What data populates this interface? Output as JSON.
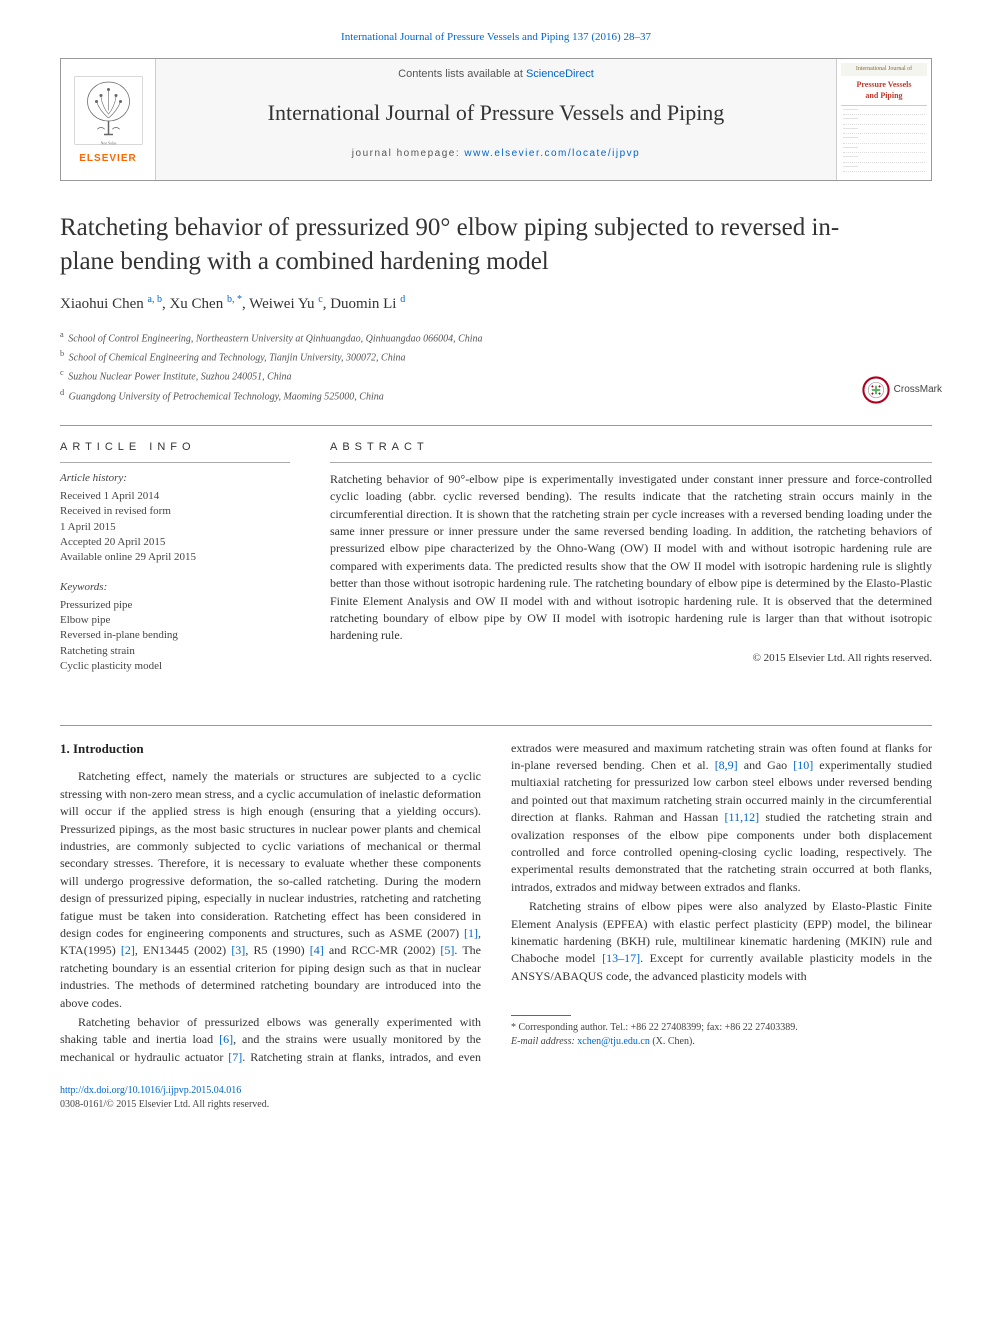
{
  "top_link": {
    "text_with_link": "International Journal of Pressure Vessels and Piping 137 (2016) 28–37"
  },
  "banner": {
    "elsevier_label": "ELSEVIER",
    "contents_prefix": "Contents lists available at ",
    "contents_link": "ScienceDirect",
    "journal_name": "International Journal of Pressure Vessels and Piping",
    "homepage_prefix": "journal homepage: ",
    "homepage_link": "www.elsevier.com/locate/ijpvp",
    "cover_small_title_top": "International Journal of",
    "cover_title_1": "Pressure Vessels",
    "cover_title_2": "and Piping"
  },
  "crossmark_label": "CrossMark",
  "article": {
    "title": "Ratcheting behavior of pressurized 90° elbow piping subjected to reversed in-plane bending with a combined hardening model",
    "authors_html": "Xiaohui Chen <sup><a class='aff-link'>a, b</a></sup>, Xu Chen <sup><a class='aff-link'>b, *</a></sup>, Weiwei Yu <sup><a class='aff-link'>c</a></sup>, Duomin Li <sup><a class='aff-link'>d</a></sup>",
    "affiliations": [
      {
        "sup": "a",
        "text": "School of Control Engineering, Northeastern University at Qinhuangdao, Qinhuangdao 066004, China"
      },
      {
        "sup": "b",
        "text": "School of Chemical Engineering and Technology, Tianjin University, 300072, China"
      },
      {
        "sup": "c",
        "text": "Suzhou Nuclear Power Institute, Suzhou 240051, China"
      },
      {
        "sup": "d",
        "text": "Guangdong University of Petrochemical Technology, Maoming 525000, China"
      }
    ]
  },
  "info": {
    "heading": "ARTICLE INFO",
    "history_label": "Article history:",
    "history": [
      "Received 1 April 2014",
      "Received in revised form",
      "1 April 2015",
      "Accepted 20 April 2015",
      "Available online 29 April 2015"
    ],
    "keywords_label": "Keywords:",
    "keywords": [
      "Pressurized pipe",
      "Elbow pipe",
      "Reversed in-plane bending",
      "Ratcheting strain",
      "Cyclic plasticity model"
    ]
  },
  "abstract": {
    "heading": "ABSTRACT",
    "text": "Ratcheting behavior of 90°-elbow pipe is experimentally investigated under constant inner pressure and force-controlled cyclic loading (abbr. cyclic reversed bending). The results indicate that the ratcheting strain occurs mainly in the circumferential direction. It is shown that the ratcheting strain per cycle increases with a reversed bending loading under the same inner pressure or inner pressure under the same reversed bending loading. In addition, the ratcheting behaviors of pressurized elbow pipe characterized by the Ohno-Wang (OW) II model with and without isotropic hardening rule are compared with experiments data. The predicted results show that the OW II model with isotropic hardening rule is slightly better than those without isotropic hardening rule. The ratcheting boundary of elbow pipe is determined by the Elasto-Plastic Finite Element Analysis and OW II model with and without isotropic hardening rule. It is observed that the determined ratcheting boundary of elbow pipe by OW II model with isotropic hardening rule is larger than that without isotropic hardening rule.",
    "copyright": "© 2015 Elsevier Ltd. All rights reserved."
  },
  "body": {
    "heading": "1. Introduction",
    "para1_pre": "Ratcheting effect, namely the materials or structures are subjected to a cyclic stressing with non-zero mean stress, and a cyclic accumulation of inelastic deformation will occur if the applied stress is high enough (ensuring that a yielding occurs). Pressurized pipings, as the most basic structures in nuclear power plants and chemical industries, are commonly subjected to cyclic variations of mechanical or thermal secondary stresses. Therefore, it is necessary to evaluate whether these components will undergo progressive deformation, the so-called ratcheting. During the modern design of pressurized piping, especially in nuclear industries, ratcheting and ratcheting fatigue must be taken into consideration. Ratcheting effect has been considered in design codes for engineering components and structures, such as ASME (2007) ",
    "ref1": "[1]",
    "para1_mid1": ", KTA(1995) ",
    "ref2": "[2]",
    "para1_mid2": ", EN13445 (2002) ",
    "ref3": "[3]",
    "para1_mid3": ", R5 (1990) ",
    "ref4": "[4]",
    "para1_mid4": " and RCC-MR (2002) ",
    "ref5": "[5]",
    "para1_post": ". The ratcheting boundary is an essential criterion for piping design such as that in nuclear industries. The methods of determined ratcheting boundary are introduced into the above codes.",
    "para2_pre": "Ratcheting behavior of pressurized elbows was generally experimented with shaking table and inertia load ",
    "ref6": "[6]",
    "para2_mid1": ", and the strains were usually monitored by the mechanical or hydraulic actuator ",
    "ref7": "[7]",
    "para2_mid2": ". Ratcheting strain at flanks, intrados, and even extrados were measured and maximum ratcheting strain was often found at flanks for in-plane reversed bending. Chen et al. ",
    "ref89": "[8,9]",
    "para2_mid3": " and Gao ",
    "ref10": "[10]",
    "para2_mid4": " experimentally studied multiaxial ratcheting for pressurized low carbon steel elbows under reversed bending and pointed out that maximum ratcheting strain occurred mainly in the circumferential direction at flanks. Rahman and Hassan ",
    "ref1112": "[11,12]",
    "para2_post": " studied the ratcheting strain and ovalization responses of the elbow pipe components under both displacement controlled and force controlled opening-closing cyclic loading, respectively. The experimental results demonstrated that the ratcheting strain occurred at both flanks, intrados, extrados and midway between extrados and flanks.",
    "para3_pre": "Ratcheting strains of elbow pipes were also analyzed by Elasto-Plastic Finite Element Analysis (EPFEA) with elastic perfect plasticity (EPP) model, the bilinear kinematic hardening (BKH) rule, multilinear kinematic hardening (MKIN) rule and Chaboche model ",
    "ref1317": "[13–17]",
    "para3_post": ". Except for currently available plasticity models in the ANSYS/ABAQUS code, the advanced plasticity models with"
  },
  "footnote": {
    "corr": "* Corresponding author. Tel.: +86 22 27408399; fax: +86 22 27403389.",
    "email_label": "E-mail address: ",
    "email": "xchen@tju.edu.cn",
    "email_suffix": " (X. Chen)."
  },
  "footer": {
    "doi": "http://dx.doi.org/10.1016/j.ijpvp.2015.04.016",
    "issn": "0308-0161/© 2015 Elsevier Ltd. All rights reserved."
  },
  "colors": {
    "link": "#0066cc",
    "elsevier_orange": "#ff6600",
    "text": "#333333",
    "cover_red": "#c0392b"
  }
}
